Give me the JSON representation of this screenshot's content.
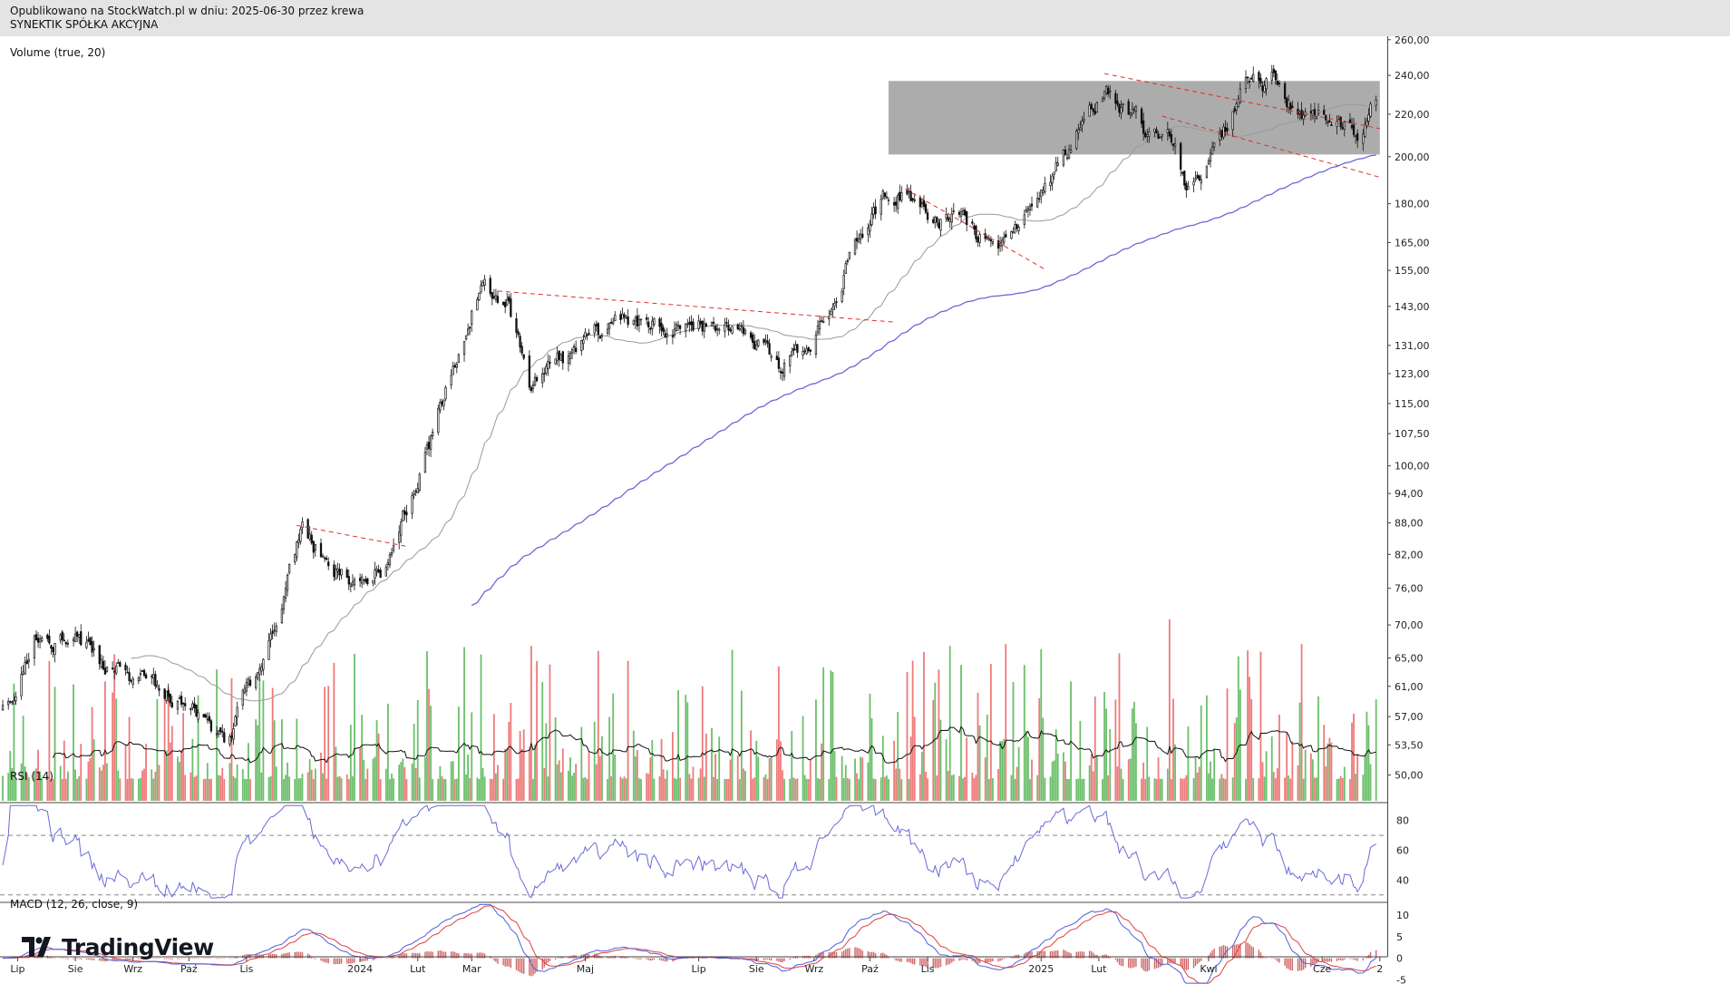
{
  "header": {
    "line1": "Opublikowano na StockWatch.pl w dniu: 2025-06-30 przez krewa",
    "line2": "SYNEKTIK SPÓŁKA AKCYJNA"
  },
  "brand": {
    "name": "TradingView"
  },
  "colors": {
    "bull": "#6cbf6c",
    "bear": "#ee7a7a",
    "candle": "#111111",
    "sma_slow": "#6a6ad8",
    "sma_fast": "#999999",
    "trend": "#e03030",
    "zone": "#9e9e9e",
    "rsi": "#6a6ad8",
    "macd": "#4f5fd8",
    "signal": "#e04040"
  },
  "chart_data": [
    {
      "type": "candlestick",
      "title": "SYNEKTIK SPÓŁKA AKCYJNA",
      "y_scale": "log",
      "y_ticks": [
        "260,00",
        "240,00",
        "220,00",
        "200,00",
        "180,00",
        "165,00",
        "155,00",
        "143,00",
        "131,00",
        "123,00",
        "115,00",
        "107,50",
        "100,00",
        "94,00",
        "88,00",
        "82,00",
        "76,00",
        "70,00",
        "65,00",
        "61,00",
        "57,00",
        "53,50",
        "50,00"
      ],
      "x_ticks": [
        "Lip",
        "Sie",
        "Wrz",
        "Paź",
        "Lis",
        "2024",
        "Lut",
        "Mar",
        "Maj",
        "Lip",
        "Sie",
        "Wrz",
        "Paź",
        "Lis",
        "2025",
        "Lut",
        "Kwi",
        "Cze",
        "2"
      ],
      "ylim": [
        47,
        262
      ],
      "anchors": {
        "dates": [
          "2023-06-30",
          "2023-07-10",
          "2023-08-01",
          "2023-08-20",
          "2023-09-25",
          "2023-10-20",
          "2023-11-05",
          "2023-12-01",
          "2023-12-25",
          "2024-01-15",
          "2024-01-31",
          "2024-02-20",
          "2024-03-05",
          "2024-03-12",
          "2024-03-20",
          "2024-04-01",
          "2024-04-20",
          "2024-05-20",
          "2024-06-15",
          "2024-07-15",
          "2024-08-01",
          "2024-08-15",
          "2024-09-10",
          "2024-09-25",
          "2024-10-10",
          "2024-10-20",
          "2024-11-01",
          "2024-11-25",
          "2024-12-10",
          "2024-12-20",
          "2025-01-10",
          "2025-01-25",
          "2025-02-05",
          "2025-02-25",
          "2025-03-10",
          "2025-03-20",
          "2025-04-05",
          "2025-04-20",
          "2025-05-05",
          "2025-05-12",
          "2025-05-25",
          "2025-06-10",
          "2025-06-20",
          "2025-06-30"
        ],
        "close": [
          58,
          68,
          69,
          63,
          60,
          54,
          62,
          86,
          78,
          80,
          95,
          125,
          150,
          146,
          145,
          119,
          127,
          140,
          137,
          138,
          133,
          123,
          143,
          168,
          183,
          183,
          176,
          168,
          163,
          175,
          195,
          222,
          232,
          213,
          215,
          189,
          205,
          232,
          236,
          225,
          219,
          214,
          210,
          227
        ]
      },
      "overlays": [
        "SMA 200",
        "SMA 50",
        "Resistance zone 201–237",
        "Dashed trendlines"
      ]
    },
    {
      "type": "bar",
      "title": "Volume (true, 20)",
      "series_note": "volume bars coloured by candle direction with 20-period average"
    },
    {
      "type": "line",
      "title": "RSI (14)",
      "y_ticks": [
        "80",
        "60",
        "40"
      ],
      "ylim": [
        25,
        92
      ],
      "guides": [
        70,
        30
      ]
    },
    {
      "type": "line",
      "title": "MACD (12, 26, close, 9)",
      "y_ticks": [
        "10",
        "5",
        "0",
        "-5"
      ],
      "ylim": [
        -6,
        13
      ]
    }
  ]
}
